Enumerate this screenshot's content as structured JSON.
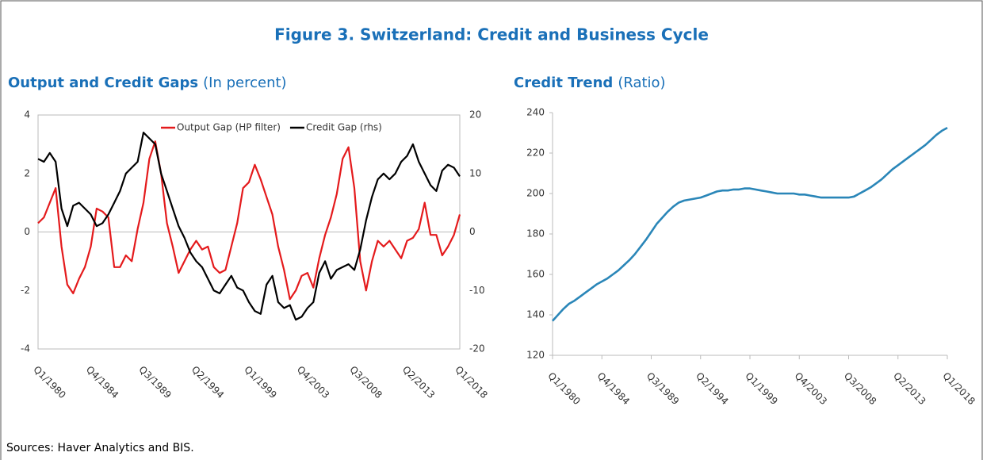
{
  "figure_title": "Figure 3. Switzerland: Credit and Business Cycle",
  "source": "Sources: Haver Analytics and BIS.",
  "chart_data": [
    {
      "type": "line",
      "title": "Output and Credit Gaps",
      "subtitle": "(In percent)",
      "categories": [
        "Q1/1980",
        null,
        null,
        null,
        null,
        null,
        null,
        null,
        null,
        "Q4/1984",
        null,
        null,
        null,
        null,
        null,
        null,
        null,
        null,
        "Q3/1989",
        null,
        null,
        null,
        null,
        null,
        null,
        null,
        null,
        "Q2/1994",
        null,
        null,
        null,
        null,
        null,
        null,
        null,
        null,
        "Q1/1999",
        null,
        null,
        null,
        null,
        null,
        null,
        null,
        null,
        "Q4/2003",
        null,
        null,
        null,
        null,
        null,
        null,
        null,
        null,
        "Q3/2008",
        null,
        null,
        null,
        null,
        null,
        null,
        null,
        null,
        "Q2/2013",
        null,
        null,
        null,
        null,
        null,
        null,
        null,
        null,
        "Q1/2018"
      ],
      "series": [
        {
          "name": "Output Gap (HP filter)",
          "color": "#e41a1c",
          "values": [
            0.3,
            0.5,
            1.0,
            1.5,
            -0.5,
            -1.8,
            -2.1,
            -1.6,
            -1.2,
            -0.5,
            0.8,
            0.7,
            0.5,
            -1.2,
            -1.2,
            -0.8,
            -1.0,
            0.1,
            1.0,
            2.5,
            3.1,
            2.0,
            0.3,
            -0.5,
            -1.4,
            -1.0,
            -0.6,
            -0.3,
            -0.6,
            -0.5,
            -1.2,
            -1.4,
            -1.3,
            -0.5,
            0.3,
            1.5,
            1.7,
            2.3,
            1.8,
            1.2,
            0.6,
            -0.5,
            -1.3,
            -2.3,
            -2.0,
            -1.5,
            -1.4,
            -1.9,
            -0.9,
            -0.1,
            0.5,
            1.3,
            2.5,
            2.9,
            1.5,
            -1.0,
            -2.0,
            -1.0,
            -0.3,
            -0.5,
            -0.3,
            -0.6,
            -0.9,
            -0.3,
            -0.2,
            0.1,
            1.0,
            -0.1,
            -0.1,
            -0.8,
            -0.5,
            -0.1,
            0.6
          ]
        },
        {
          "name": "Credit Gap (rhs)",
          "color": "#000000",
          "axis": "y2",
          "values": [
            12.5,
            12.0,
            13.5,
            12.0,
            4.0,
            1.0,
            4.5,
            5.0,
            4.0,
            3.0,
            1.0,
            1.5,
            3.0,
            5.0,
            7.0,
            10.0,
            11.0,
            12.0,
            17.0,
            16.0,
            15.0,
            10.0,
            7.0,
            4.0,
            1.0,
            -1.0,
            -3.5,
            -5.0,
            -6.0,
            -8.0,
            -10.0,
            -10.5,
            -9.0,
            -7.5,
            -9.5,
            -10.0,
            -12.0,
            -13.5,
            -14.0,
            -9.0,
            -7.5,
            -12.0,
            -13.0,
            -12.5,
            -15.0,
            -14.5,
            -13.0,
            -12.0,
            -7.0,
            -5.0,
            -8.0,
            -6.5,
            -6.0,
            -5.5,
            -6.5,
            -3.0,
            2.0,
            6.0,
            9.0,
            10.0,
            9.0,
            10.0,
            12.0,
            13.0,
            15.0,
            12.0,
            10.0,
            8.0,
            7.0,
            10.5,
            11.5,
            11.0,
            9.5
          ]
        }
      ],
      "ylim": [
        -4,
        4
      ],
      "yticks": [
        -4,
        -2,
        0,
        2,
        4
      ],
      "y2lim": [
        -20,
        20
      ],
      "y2ticks": [
        -20,
        -10,
        0,
        10,
        20
      ],
      "legend": "top",
      "zero_line": true,
      "frame": true
    },
    {
      "type": "line",
      "title": "Credit Trend",
      "subtitle": "(Ratio)",
      "categories": [
        "Q1/1980",
        null,
        null,
        null,
        null,
        null,
        null,
        null,
        null,
        "Q4/1984",
        null,
        null,
        null,
        null,
        null,
        null,
        null,
        null,
        "Q3/1989",
        null,
        null,
        null,
        null,
        null,
        null,
        null,
        null,
        "Q2/1994",
        null,
        null,
        null,
        null,
        null,
        null,
        null,
        null,
        "Q1/1999",
        null,
        null,
        null,
        null,
        null,
        null,
        null,
        null,
        "Q4/2003",
        null,
        null,
        null,
        null,
        null,
        null,
        null,
        null,
        "Q3/2008",
        null,
        null,
        null,
        null,
        null,
        null,
        null,
        null,
        "Q2/2013",
        null,
        null,
        null,
        null,
        null,
        null,
        null,
        null,
        "Q1/2018"
      ],
      "series": [
        {
          "color": "#2a86b8",
          "values": [
            137,
            140,
            143,
            145.5,
            147,
            149,
            151,
            153,
            155,
            156.5,
            158,
            160,
            162,
            164.5,
            167,
            170,
            173.5,
            177,
            181,
            185,
            188,
            191,
            193.5,
            195.5,
            196.5,
            197,
            197.5,
            198,
            199,
            200,
            201,
            201.5,
            201.5,
            202,
            202,
            202.5,
            202.5,
            202,
            201.5,
            201,
            200.5,
            200,
            200,
            200,
            200,
            199.5,
            199.5,
            199,
            198.5,
            198,
            198,
            198,
            198,
            198,
            198,
            198.5,
            200,
            201.5,
            203,
            205,
            207,
            209.5,
            212,
            214,
            216,
            218,
            220,
            222,
            224,
            226.5,
            229,
            231,
            232.5
          ]
        }
      ],
      "ylim": [
        120,
        240
      ],
      "yticks": [
        120,
        140,
        160,
        180,
        200,
        220,
        240
      ],
      "x_tick_marks": true,
      "frame": false
    }
  ]
}
